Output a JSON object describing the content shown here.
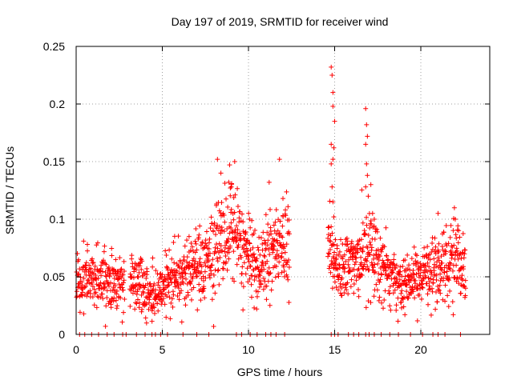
{
  "chart_data": {
    "type": "scatter",
    "title": "Day 197 of 2019, SRMTID for receiver wind",
    "xlabel": "GPS time / hours",
    "ylabel": "SRMTID / TECUs",
    "xlim": [
      0,
      24
    ],
    "ylim": [
      0,
      0.25
    ],
    "xticks": [
      0,
      5,
      10,
      15,
      20
    ],
    "xtick_labels": [
      "0",
      "5",
      "10",
      "15",
      "20"
    ],
    "yticks": [
      0,
      0.05,
      0.1,
      0.15,
      0.2,
      0.25
    ],
    "ytick_labels": [
      "0",
      "0.05",
      "0.1",
      "0.15",
      "0.2",
      "0.25"
    ],
    "grid": true,
    "marker": "+",
    "color": "#ff0000",
    "series": [
      {
        "name": "SRMTID",
        "trend": [
          [
            0.0,
            0.045
          ],
          [
            0.5,
            0.048
          ],
          [
            1.0,
            0.05
          ],
          [
            1.5,
            0.048
          ],
          [
            2.0,
            0.045
          ],
          [
            2.5,
            0.045
          ],
          [
            3.2,
            0.046
          ],
          [
            3.7,
            0.048
          ],
          [
            4.2,
            0.038
          ],
          [
            4.6,
            0.036
          ],
          [
            5.0,
            0.042
          ],
          [
            5.5,
            0.05
          ],
          [
            6.0,
            0.052
          ],
          [
            6.5,
            0.056
          ],
          [
            7.0,
            0.058
          ],
          [
            7.5,
            0.062
          ],
          [
            8.0,
            0.072
          ],
          [
            8.5,
            0.085
          ],
          [
            9.0,
            0.092
          ],
          [
            9.5,
            0.08
          ],
          [
            10.0,
            0.065
          ],
          [
            10.5,
            0.055
          ],
          [
            11.0,
            0.065
          ],
          [
            11.5,
            0.072
          ],
          [
            12.0,
            0.08
          ],
          [
            12.3,
            0.075
          ],
          [
            14.8,
            0.065
          ],
          [
            15.2,
            0.062
          ],
          [
            15.7,
            0.06
          ],
          [
            16.2,
            0.062
          ],
          [
            16.7,
            0.072
          ],
          [
            17.2,
            0.07
          ],
          [
            17.7,
            0.062
          ],
          [
            18.2,
            0.05
          ],
          [
            18.7,
            0.042
          ],
          [
            19.2,
            0.045
          ],
          [
            19.7,
            0.05
          ],
          [
            20.2,
            0.055
          ],
          [
            20.7,
            0.055
          ],
          [
            21.2,
            0.06
          ],
          [
            21.7,
            0.065
          ],
          [
            22.2,
            0.068
          ],
          [
            22.6,
            0.06
          ]
        ],
        "spikes": [
          [
            8.2,
            0.152
          ],
          [
            8.4,
            0.14
          ],
          [
            9.0,
            0.128
          ],
          [
            9.2,
            0.15
          ],
          [
            11.2,
            0.132
          ],
          [
            11.8,
            0.152
          ],
          [
            12.0,
            0.118
          ],
          [
            14.8,
            0.232
          ],
          [
            14.85,
            0.225
          ],
          [
            14.9,
            0.21
          ],
          [
            14.9,
            0.198
          ],
          [
            15.0,
            0.185
          ],
          [
            14.8,
            0.165
          ],
          [
            14.95,
            0.162
          ],
          [
            14.9,
            0.152
          ],
          [
            14.8,
            0.148
          ],
          [
            14.85,
            0.128
          ],
          [
            14.9,
            0.115
          ],
          [
            14.95,
            0.102
          ],
          [
            16.8,
            0.196
          ],
          [
            16.85,
            0.182
          ],
          [
            16.9,
            0.172
          ],
          [
            16.8,
            0.165
          ],
          [
            16.85,
            0.148
          ],
          [
            16.9,
            0.138
          ],
          [
            16.8,
            0.128
          ],
          [
            16.95,
            0.12
          ],
          [
            17.1,
            0.13
          ],
          [
            17.2,
            0.105
          ],
          [
            17.3,
            0.1
          ],
          [
            21.0,
            0.105
          ],
          [
            22.0,
            0.1
          ]
        ],
        "zero_points": [
          0.2,
          0.5,
          0.9,
          1.3,
          1.8,
          2.2,
          2.7,
          2.9,
          3.5,
          4.0,
          4.4,
          4.6,
          4.9,
          5.3,
          6.2,
          7.0,
          7.7,
          9.3,
          9.6,
          10.1,
          10.5,
          11.0,
          11.3,
          11.6,
          12.1,
          14.8,
          15.0,
          15.2,
          15.8,
          16.1,
          16.4,
          16.8,
          17.0,
          17.3,
          17.7,
          18.2,
          18.7,
          19.4,
          20.1,
          20.7,
          21.0,
          21.4,
          22.3
        ],
        "gaps": [
          [
            2.8,
            3.1
          ],
          [
            12.4,
            14.6
          ]
        ],
        "x_range": [
          0.0,
          22.6
        ]
      }
    ]
  }
}
